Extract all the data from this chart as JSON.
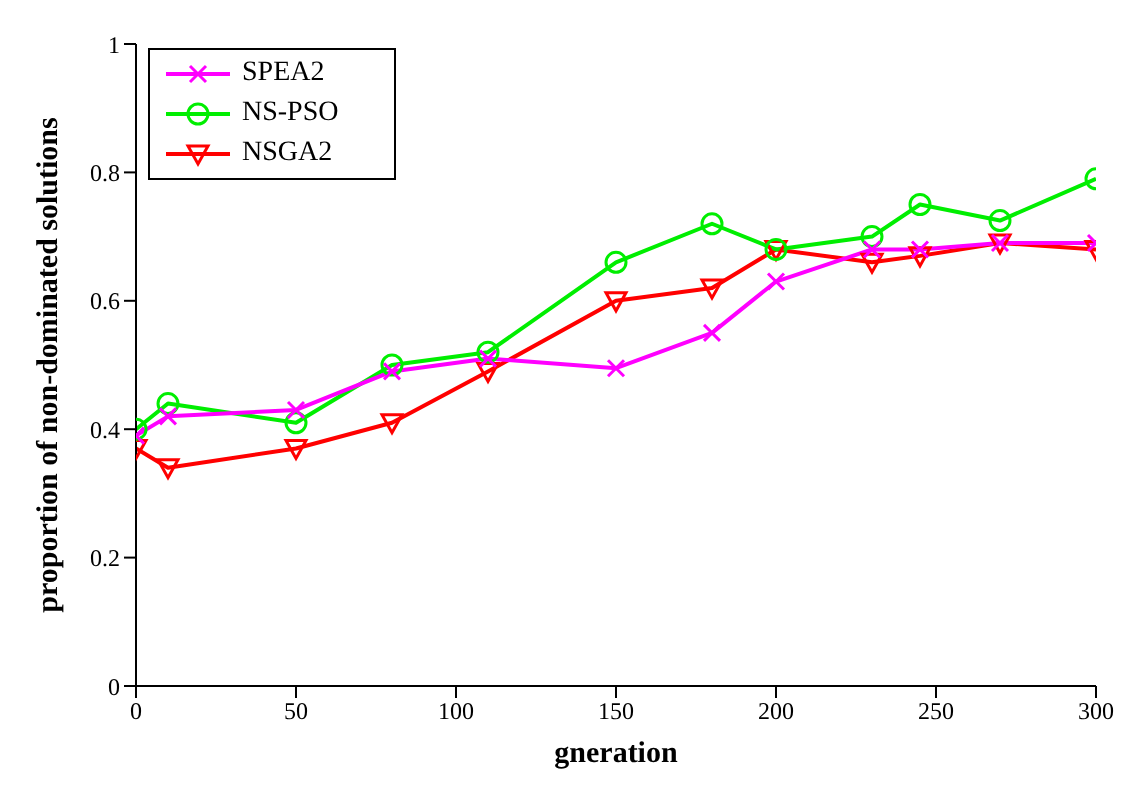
{
  "chart_data": {
    "type": "line",
    "xlabel": "gneration",
    "ylabel": "proportion of non-dominated solutions",
    "x": [
      0,
      10,
      50,
      80,
      110,
      150,
      180,
      200,
      230,
      245,
      270,
      300
    ],
    "series": [
      {
        "name": "SPEA2",
        "color": "#ff00ff",
        "marker": "cross",
        "values": [
          0.39,
          0.42,
          0.43,
          0.49,
          0.51,
          0.495,
          0.55,
          0.63,
          0.68,
          0.68,
          0.69,
          0.69
        ]
      },
      {
        "name": "NS-PSO",
        "color": "#00ee00",
        "marker": "circle",
        "values": [
          0.4,
          0.44,
          0.41,
          0.5,
          0.52,
          0.66,
          0.72,
          0.68,
          0.7,
          0.75,
          0.725,
          0.79
        ]
      },
      {
        "name": "NSGA2",
        "color": "#ff0000",
        "marker": "triangle",
        "values": [
          0.37,
          0.34,
          0.37,
          0.41,
          0.49,
          0.6,
          0.62,
          0.68,
          0.66,
          0.67,
          0.69,
          0.68
        ]
      }
    ],
    "xlim": [
      0,
      300
    ],
    "xticks": [
      0,
      50,
      100,
      150,
      200,
      250,
      300
    ],
    "ylim": [
      0,
      1
    ],
    "yticks": [
      0,
      0.2,
      0.4,
      0.6,
      0.8,
      1
    ],
    "grid": false,
    "legend": "top left"
  }
}
